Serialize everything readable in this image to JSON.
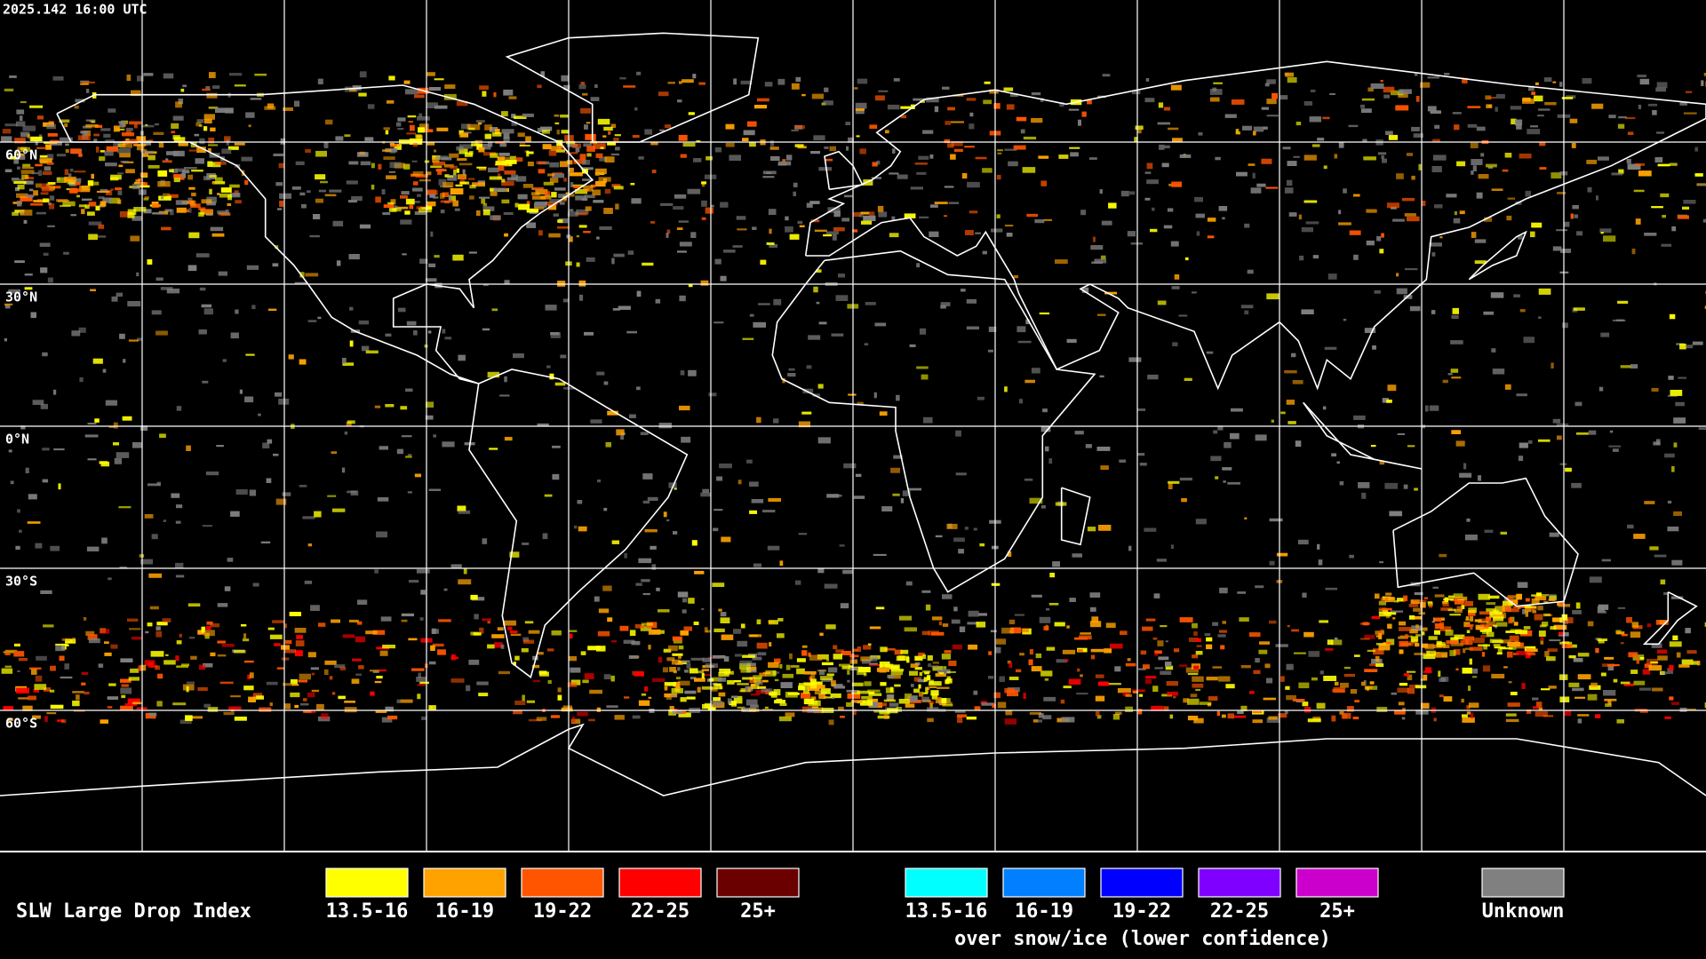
{
  "header": {
    "timestamp": "2025.142 16:00 UTC"
  },
  "map": {
    "latitude_labels": [
      "60°N",
      "30°N",
      "0°N",
      "30°S",
      "60°S"
    ]
  },
  "legend": {
    "title": "SLW Large Drop Index",
    "items": [
      {
        "label": "13.5-16",
        "color": "#ffff00"
      },
      {
        "label": "16-19",
        "color": "#ffa200"
      },
      {
        "label": "19-22",
        "color": "#ff5500"
      },
      {
        "label": "22-25",
        "color": "#ff0000"
      },
      {
        "label": "25+",
        "color": "#6a0000"
      }
    ],
    "snow_items": [
      {
        "label": "13.5-16",
        "color": "#00ffff"
      },
      {
        "label": "16-19",
        "color": "#0080ff"
      },
      {
        "label": "19-22",
        "color": "#0000ff"
      },
      {
        "label": "22-25",
        "color": "#8000ff"
      },
      {
        "label": "25+",
        "color": "#cc00cc"
      }
    ],
    "snow_caption": "over snow/ice (lower confidence)",
    "unknown": {
      "label": "Unknown",
      "color": "#808080"
    }
  }
}
